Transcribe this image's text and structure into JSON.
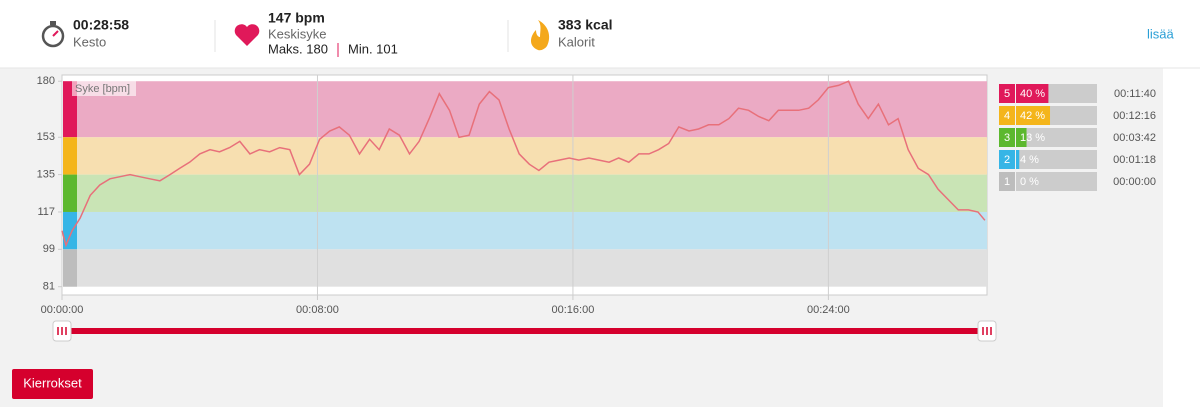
{
  "header": {
    "duration": {
      "value": "00:28:58",
      "label": "Kesto"
    },
    "heart_rate": {
      "value": "147 bpm",
      "label": "Keskisyke",
      "max": "Maks. 180",
      "min": "Min. 101"
    },
    "calories": {
      "value": "383 kcal",
      "label": "Kalorit"
    },
    "more": "lisää"
  },
  "chart_data": {
    "type": "line",
    "y_label": "Syke [bpm]",
    "color": "#e8707a",
    "x": [
      0,
      7.5,
      19,
      34,
      53,
      71,
      90,
      109,
      128,
      146,
      165,
      184,
      203,
      221,
      240,
      259,
      278,
      296,
      315,
      334,
      353,
      371,
      390,
      409,
      428,
      446,
      465,
      484,
      503,
      521,
      540,
      559,
      578,
      596,
      615,
      634,
      653,
      671,
      690,
      709,
      728,
      746,
      765,
      784,
      803,
      821,
      840,
      859,
      878,
      896,
      915,
      934,
      953,
      971,
      990,
      1009,
      1028,
      1046,
      1065,
      1084,
      1103,
      1121,
      1140,
      1159,
      1178,
      1196,
      1215,
      1234,
      1253,
      1271,
      1290,
      1309,
      1328,
      1346,
      1365,
      1384,
      1403,
      1421,
      1440,
      1459,
      1478,
      1496,
      1515,
      1534,
      1553,
      1571,
      1590,
      1609,
      1628,
      1646,
      1665,
      1684,
      1703,
      1721,
      1734
    ],
    "values": [
      108,
      101,
      108,
      114,
      125,
      130,
      133,
      134,
      135,
      134,
      133,
      132,
      135,
      138,
      141,
      145,
      147,
      146,
      148,
      151,
      145,
      147,
      146,
      148,
      147,
      135,
      140,
      152,
      156,
      158,
      154,
      145,
      152,
      147,
      157,
      154,
      145,
      151,
      162,
      174,
      166,
      153,
      154,
      169,
      175,
      171,
      157,
      145,
      140,
      137,
      141,
      142,
      143,
      142,
      143,
      142,
      141,
      143,
      141,
      145,
      145,
      147,
      150,
      158,
      156,
      157,
      159,
      159,
      162,
      167,
      166,
      163,
      161,
      166,
      166,
      166,
      167,
      171,
      177,
      178,
      180,
      169,
      162,
      169,
      159,
      162,
      147,
      138,
      135,
      128,
      123,
      118,
      118,
      117,
      113
    ],
    "xlim": [
      0,
      1738
    ],
    "xticks": [
      {
        "value": 0,
        "label": "00:00:00"
      },
      {
        "value": 480,
        "label": "00:08:00"
      },
      {
        "value": 960,
        "label": "00:16:00"
      },
      {
        "value": 1440,
        "label": "00:24:00"
      }
    ],
    "ylim": [
      77,
      183
    ],
    "yticks": [
      81,
      99,
      117,
      135,
      153,
      180
    ],
    "grid": true,
    "zones": {
      "names": [
        "5",
        "4",
        "3",
        "2",
        "1"
      ],
      "values": [
        40,
        42,
        13,
        4,
        0
      ],
      "value_labels": [
        "40 %",
        "42 %",
        "13 %",
        "4 %",
        "0 %"
      ],
      "times": [
        "00:11:40",
        "00:12:16",
        "00:03:42",
        "00:01:18",
        "00:00:00"
      ],
      "lower": [
        153,
        135,
        117,
        99,
        81
      ],
      "upper": [
        180,
        153,
        135,
        117,
        99
      ],
      "colors": [
        "#e0195a",
        "#f4b51b",
        "#5cb82e",
        "#36b5e6",
        "#bdbdbd"
      ],
      "band_colors": [
        "#ebaac4",
        "#f7dfb0",
        "#c9e4b5",
        "#bee2f1",
        "#e0e0e0"
      ]
    }
  },
  "laps_button": "Kierrokset"
}
